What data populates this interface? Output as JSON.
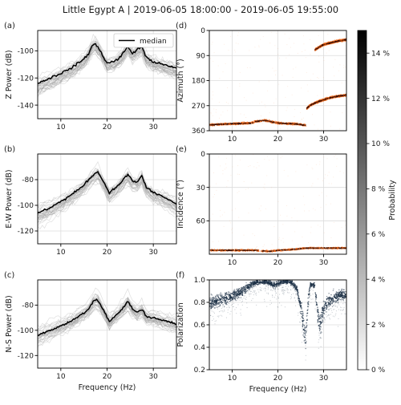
{
  "title": "Little Egypt A | 2019-06-05 18:00:00 - 2019-06-05 19:55:00",
  "panel_letters": [
    "(a)",
    "(b)",
    "(c)",
    "(d)",
    "(e)",
    "(f)"
  ],
  "legend_label": "median",
  "colorbar": {
    "label": "Probability",
    "tick_labels": [
      "0 %",
      "2 %",
      "4 %",
      "6 %",
      "8 %",
      "10 %",
      "12 %",
      "14 %"
    ],
    "range": [
      0,
      15
    ],
    "colors": [
      "#ffffff",
      "#000000"
    ]
  },
  "chart_data": [
    {
      "id": "a",
      "type": "line",
      "xlabel": "",
      "ylabel": "Z Power (dB)",
      "xlim": [
        5,
        35
      ],
      "ylim": [
        -150,
        -85
      ],
      "xticks": [
        10,
        20,
        30
      ],
      "yticks": [
        -140,
        -120,
        -100
      ],
      "grid": true,
      "legend": "top-right",
      "series": [
        {
          "name": "median",
          "x": [
            5,
            7,
            9,
            11,
            13,
            15,
            16,
            16.8,
            17.5,
            18.5,
            20,
            21.5,
            23,
            24.5,
            25.5,
            26.5,
            27.5,
            28.5,
            30,
            32,
            35
          ],
          "y": [
            -124,
            -121,
            -118,
            -115,
            -111,
            -106,
            -102,
            -96,
            -95,
            -100,
            -109,
            -108,
            -104,
            -97,
            -102,
            -99,
            -97,
            -105,
            -108,
            -110,
            -113
          ]
        }
      ]
    },
    {
      "id": "b",
      "type": "line",
      "xlabel": "",
      "ylabel": "E-W Power (dB)",
      "xlim": [
        5,
        35
      ],
      "ylim": [
        -130,
        -60
      ],
      "xticks": [
        10,
        20,
        30
      ],
      "yticks": [
        -120,
        -100,
        -80
      ],
      "grid": true,
      "series": [
        {
          "name": "median",
          "x": [
            5,
            7,
            9,
            11,
            13,
            15,
            16,
            17,
            18,
            19,
            20.5,
            22,
            23.5,
            24.5,
            25.5,
            26.5,
            27.5,
            28.5,
            30,
            32,
            35
          ],
          "y": [
            -106,
            -103,
            -99,
            -95,
            -90,
            -84,
            -80,
            -76,
            -74,
            -80,
            -90,
            -86,
            -80,
            -76,
            -81,
            -82,
            -77,
            -86,
            -90,
            -93,
            -99
          ]
        }
      ]
    },
    {
      "id": "c",
      "type": "line",
      "xlabel": "Frequency (Hz)",
      "ylabel": "N-S Power (dB)",
      "xlim": [
        5,
        35
      ],
      "ylim": [
        -130,
        -60
      ],
      "xticks": [
        10,
        20,
        30
      ],
      "yticks": [
        -120,
        -100,
        -80
      ],
      "grid": true,
      "series": [
        {
          "name": "median",
          "x": [
            5,
            7,
            9,
            11,
            13,
            15,
            16,
            17,
            17.8,
            18.8,
            20.5,
            22,
            23.5,
            24.5,
            25.5,
            26.5,
            27.5,
            28.5,
            30,
            32,
            35
          ],
          "y": [
            -104,
            -101,
            -98,
            -95,
            -91,
            -86,
            -83,
            -77,
            -75,
            -81,
            -93,
            -88,
            -82,
            -77,
            -83,
            -86,
            -83,
            -89,
            -90,
            -92,
            -95
          ]
        }
      ]
    },
    {
      "id": "d",
      "type": "heatmap",
      "xlabel": "",
      "ylabel": "Azimuth (°)",
      "xlim": [
        5,
        35
      ],
      "ylim": [
        360,
        0
      ],
      "xticks": [
        10,
        20,
        30
      ],
      "yticks": [
        0,
        90,
        180,
        270,
        360
      ],
      "grid": true,
      "colors": [
        "#ffffff",
        "#f26a1b",
        "#3a0f00"
      ],
      "series": [
        {
          "x": [
            5,
            10,
            14,
            15,
            17,
            20,
            24,
            26
          ],
          "y": [
            337,
            333,
            331,
            325,
            321,
            331,
            334,
            339
          ]
        },
        {
          "x": [
            26.2,
            27,
            29,
            31,
            33,
            35
          ],
          "y": [
            278,
            266,
            252,
            241,
            234,
            230
          ]
        },
        {
          "x": [
            28,
            29,
            30,
            31,
            33,
            35
          ],
          "y": [
            68,
            57,
            48,
            44,
            36,
            31
          ]
        }
      ]
    },
    {
      "id": "e",
      "type": "heatmap",
      "xlabel": "",
      "ylabel": "Incidence (°)",
      "xlim": [
        5,
        35
      ],
      "ylim": [
        90,
        0
      ],
      "xticks": [
        10,
        20,
        30
      ],
      "yticks": [
        0,
        30,
        60
      ],
      "grid": true,
      "colors": [
        "#ffffff",
        "#f26a1b",
        "#3a0f00"
      ],
      "series": [
        {
          "x": [
            5,
            10,
            15,
            18,
            20,
            24,
            26,
            28,
            30,
            35
          ],
          "y": [
            86,
            86,
            86,
            87,
            86,
            85,
            84,
            84,
            84,
            84
          ]
        }
      ]
    },
    {
      "id": "f",
      "type": "heatmap",
      "xlabel": "Frequency (Hz)",
      "ylabel": "Polarization",
      "xlim": [
        5,
        35
      ],
      "ylim": [
        0.2,
        1.0
      ],
      "xticks": [
        10,
        20,
        30
      ],
      "yticks": [
        0.2,
        0.4,
        0.6,
        0.8,
        1.0
      ],
      "grid": true,
      "colors": [
        "#ffffff",
        "#1b2f45"
      ],
      "series": [
        {
          "x": [
            5,
            7,
            9,
            11,
            13,
            14,
            15,
            16,
            17,
            18,
            19,
            20,
            21,
            22,
            23,
            24,
            25,
            25.5,
            26,
            26.5,
            27,
            28,
            28.5,
            29,
            30,
            31,
            33,
            35
          ],
          "y": [
            0.8,
            0.82,
            0.85,
            0.88,
            0.93,
            0.96,
            0.98,
            0.99,
            0.99,
            0.98,
            0.96,
            0.97,
            0.99,
            0.99,
            0.98,
            0.93,
            0.75,
            0.58,
            0.5,
            0.82,
            0.97,
            0.95,
            0.75,
            0.6,
            0.75,
            0.82,
            0.86,
            0.88
          ]
        }
      ]
    }
  ]
}
